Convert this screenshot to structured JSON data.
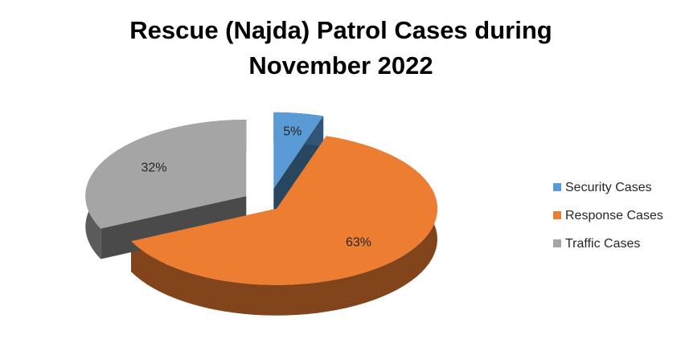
{
  "chart_data": {
    "type": "pie3d",
    "title": "Rescue (Najda) Patrol Cases during November 2022",
    "categories": [
      "Security Cases",
      "Response Cases",
      "Traffic Cases"
    ],
    "values": [
      5,
      63,
      32
    ],
    "value_labels": [
      "5%",
      "63%",
      "32%"
    ],
    "colors": [
      "#5b9bd5",
      "#ed7d31",
      "#a5a5a5"
    ],
    "legend": "right"
  }
}
